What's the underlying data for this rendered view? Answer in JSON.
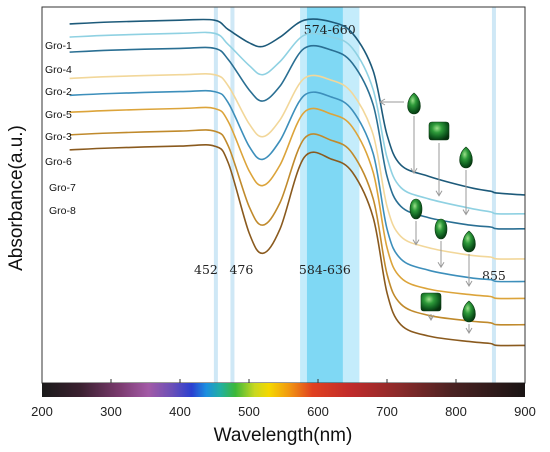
{
  "chart_data": {
    "type": "line",
    "title": "",
    "xlabel": "Wavelength(nm)",
    "ylabel": "Absorbance(a.u.)",
    "xlim": [
      200,
      900
    ],
    "x_ticks": [
      200,
      300,
      400,
      500,
      600,
      700,
      800,
      900
    ],
    "y_ticks_shown": false,
    "grid": false,
    "legend": "labels-at-left-of-curves",
    "spectrum_bar": true,
    "highlight_bands": [
      {
        "from": 452,
        "to": 452,
        "label": "452",
        "color": "#cfe8f6"
      },
      {
        "from": 476,
        "to": 476,
        "label": "476",
        "color": "#cfe8f6"
      },
      {
        "from": 574,
        "to": 660,
        "label": "574-660",
        "color": "#c4ecfb"
      },
      {
        "from": 584,
        "to": 636,
        "label": "584-636",
        "color": "#7fd8f4"
      },
      {
        "from": 855,
        "to": 855,
        "label": "855",
        "color": "#cfe8f6"
      }
    ],
    "series": [
      {
        "name": "Gro-1",
        "color": "#1d5a7a",
        "x": [
          240,
          300,
          400,
          450,
          470,
          500,
          520,
          545,
          580,
          620,
          650,
          680,
          700,
          720,
          760,
          820,
          850,
          860,
          900
        ],
        "y": [
          0.955,
          0.96,
          0.965,
          0.965,
          0.94,
          0.905,
          0.895,
          0.92,
          0.965,
          0.96,
          0.93,
          0.83,
          0.66,
          0.58,
          0.55,
          0.52,
          0.51,
          0.505,
          0.5
        ]
      },
      {
        "name": "Gro-4",
        "color": "#8fd1e2",
        "x": [
          240,
          300,
          400,
          450,
          470,
          500,
          520,
          545,
          580,
          620,
          650,
          680,
          700,
          720,
          760,
          820,
          850,
          860,
          900
        ],
        "y": [
          0.92,
          0.925,
          0.93,
          0.93,
          0.9,
          0.845,
          0.82,
          0.855,
          0.925,
          0.92,
          0.89,
          0.78,
          0.6,
          0.52,
          0.49,
          0.465,
          0.455,
          0.45,
          0.45
        ]
      },
      {
        "name": "Gro-2",
        "color": "#2a6f93",
        "x": [
          240,
          300,
          400,
          450,
          470,
          500,
          520,
          545,
          580,
          620,
          650,
          680,
          700,
          720,
          760,
          820,
          850,
          860,
          900
        ],
        "y": [
          0.88,
          0.885,
          0.89,
          0.89,
          0.86,
          0.78,
          0.75,
          0.79,
          0.89,
          0.885,
          0.85,
          0.74,
          0.55,
          0.47,
          0.44,
          0.42,
          0.415,
          0.41,
          0.41
        ]
      },
      {
        "name": "Gro-5",
        "color": "#f2d79a",
        "x": [
          240,
          300,
          400,
          450,
          470,
          500,
          520,
          545,
          580,
          620,
          650,
          680,
          700,
          720,
          760,
          820,
          850,
          860,
          900
        ],
        "y": [
          0.81,
          0.815,
          0.82,
          0.82,
          0.79,
          0.69,
          0.655,
          0.7,
          0.81,
          0.805,
          0.77,
          0.66,
          0.47,
          0.39,
          0.36,
          0.34,
          0.335,
          0.33,
          0.33
        ]
      },
      {
        "name": "Gro-3",
        "color": "#3d8fbb",
        "x": [
          240,
          300,
          400,
          450,
          470,
          500,
          520,
          545,
          580,
          620,
          650,
          680,
          700,
          720,
          760,
          820,
          850,
          860,
          900
        ],
        "y": [
          0.765,
          0.77,
          0.775,
          0.775,
          0.745,
          0.63,
          0.595,
          0.645,
          0.765,
          0.76,
          0.725,
          0.61,
          0.41,
          0.33,
          0.3,
          0.28,
          0.275,
          0.27,
          0.27
        ]
      },
      {
        "name": "Gro-6",
        "color": "#dca43a",
        "x": [
          240,
          300,
          400,
          450,
          470,
          500,
          520,
          545,
          580,
          620,
          650,
          680,
          700,
          720,
          760,
          820,
          850,
          860,
          900
        ],
        "y": [
          0.72,
          0.725,
          0.73,
          0.73,
          0.695,
          0.565,
          0.525,
          0.58,
          0.72,
          0.715,
          0.68,
          0.56,
          0.36,
          0.28,
          0.25,
          0.235,
          0.23,
          0.225,
          0.225
        ]
      },
      {
        "name": "Gro-7",
        "color": "#c08a2c",
        "x": [
          240,
          300,
          400,
          450,
          470,
          500,
          520,
          545,
          580,
          620,
          650,
          680,
          700,
          720,
          760,
          820,
          850,
          860,
          900
        ],
        "y": [
          0.66,
          0.665,
          0.67,
          0.67,
          0.63,
          0.47,
          0.42,
          0.48,
          0.65,
          0.645,
          0.61,
          0.49,
          0.29,
          0.21,
          0.18,
          0.165,
          0.16,
          0.155,
          0.155
        ]
      },
      {
        "name": "Gro-8",
        "color": "#8a5a1e",
        "x": [
          240,
          300,
          400,
          450,
          470,
          500,
          520,
          545,
          580,
          620,
          650,
          680,
          700,
          720,
          760,
          820,
          850,
          860,
          900
        ],
        "y": [
          0.62,
          0.625,
          0.63,
          0.63,
          0.585,
          0.4,
          0.345,
          0.41,
          0.6,
          0.595,
          0.56,
          0.44,
          0.24,
          0.155,
          0.125,
          0.11,
          0.105,
          0.1,
          0.1
        ]
      }
    ],
    "gem_icons": [
      {
        "series": "Gro-1",
        "shape": "pear"
      },
      {
        "series": "Gro-4",
        "shape": "cushion"
      },
      {
        "series": "Gro-2",
        "shape": "pear"
      },
      {
        "series": "Gro-5",
        "shape": "oval"
      },
      {
        "series": "Gro-3",
        "shape": "oval"
      },
      {
        "series": "Gro-6",
        "shape": "pear"
      },
      {
        "series": "Gro-7",
        "shape": "cushion"
      },
      {
        "series": "Gro-8",
        "shape": "pear"
      }
    ]
  }
}
